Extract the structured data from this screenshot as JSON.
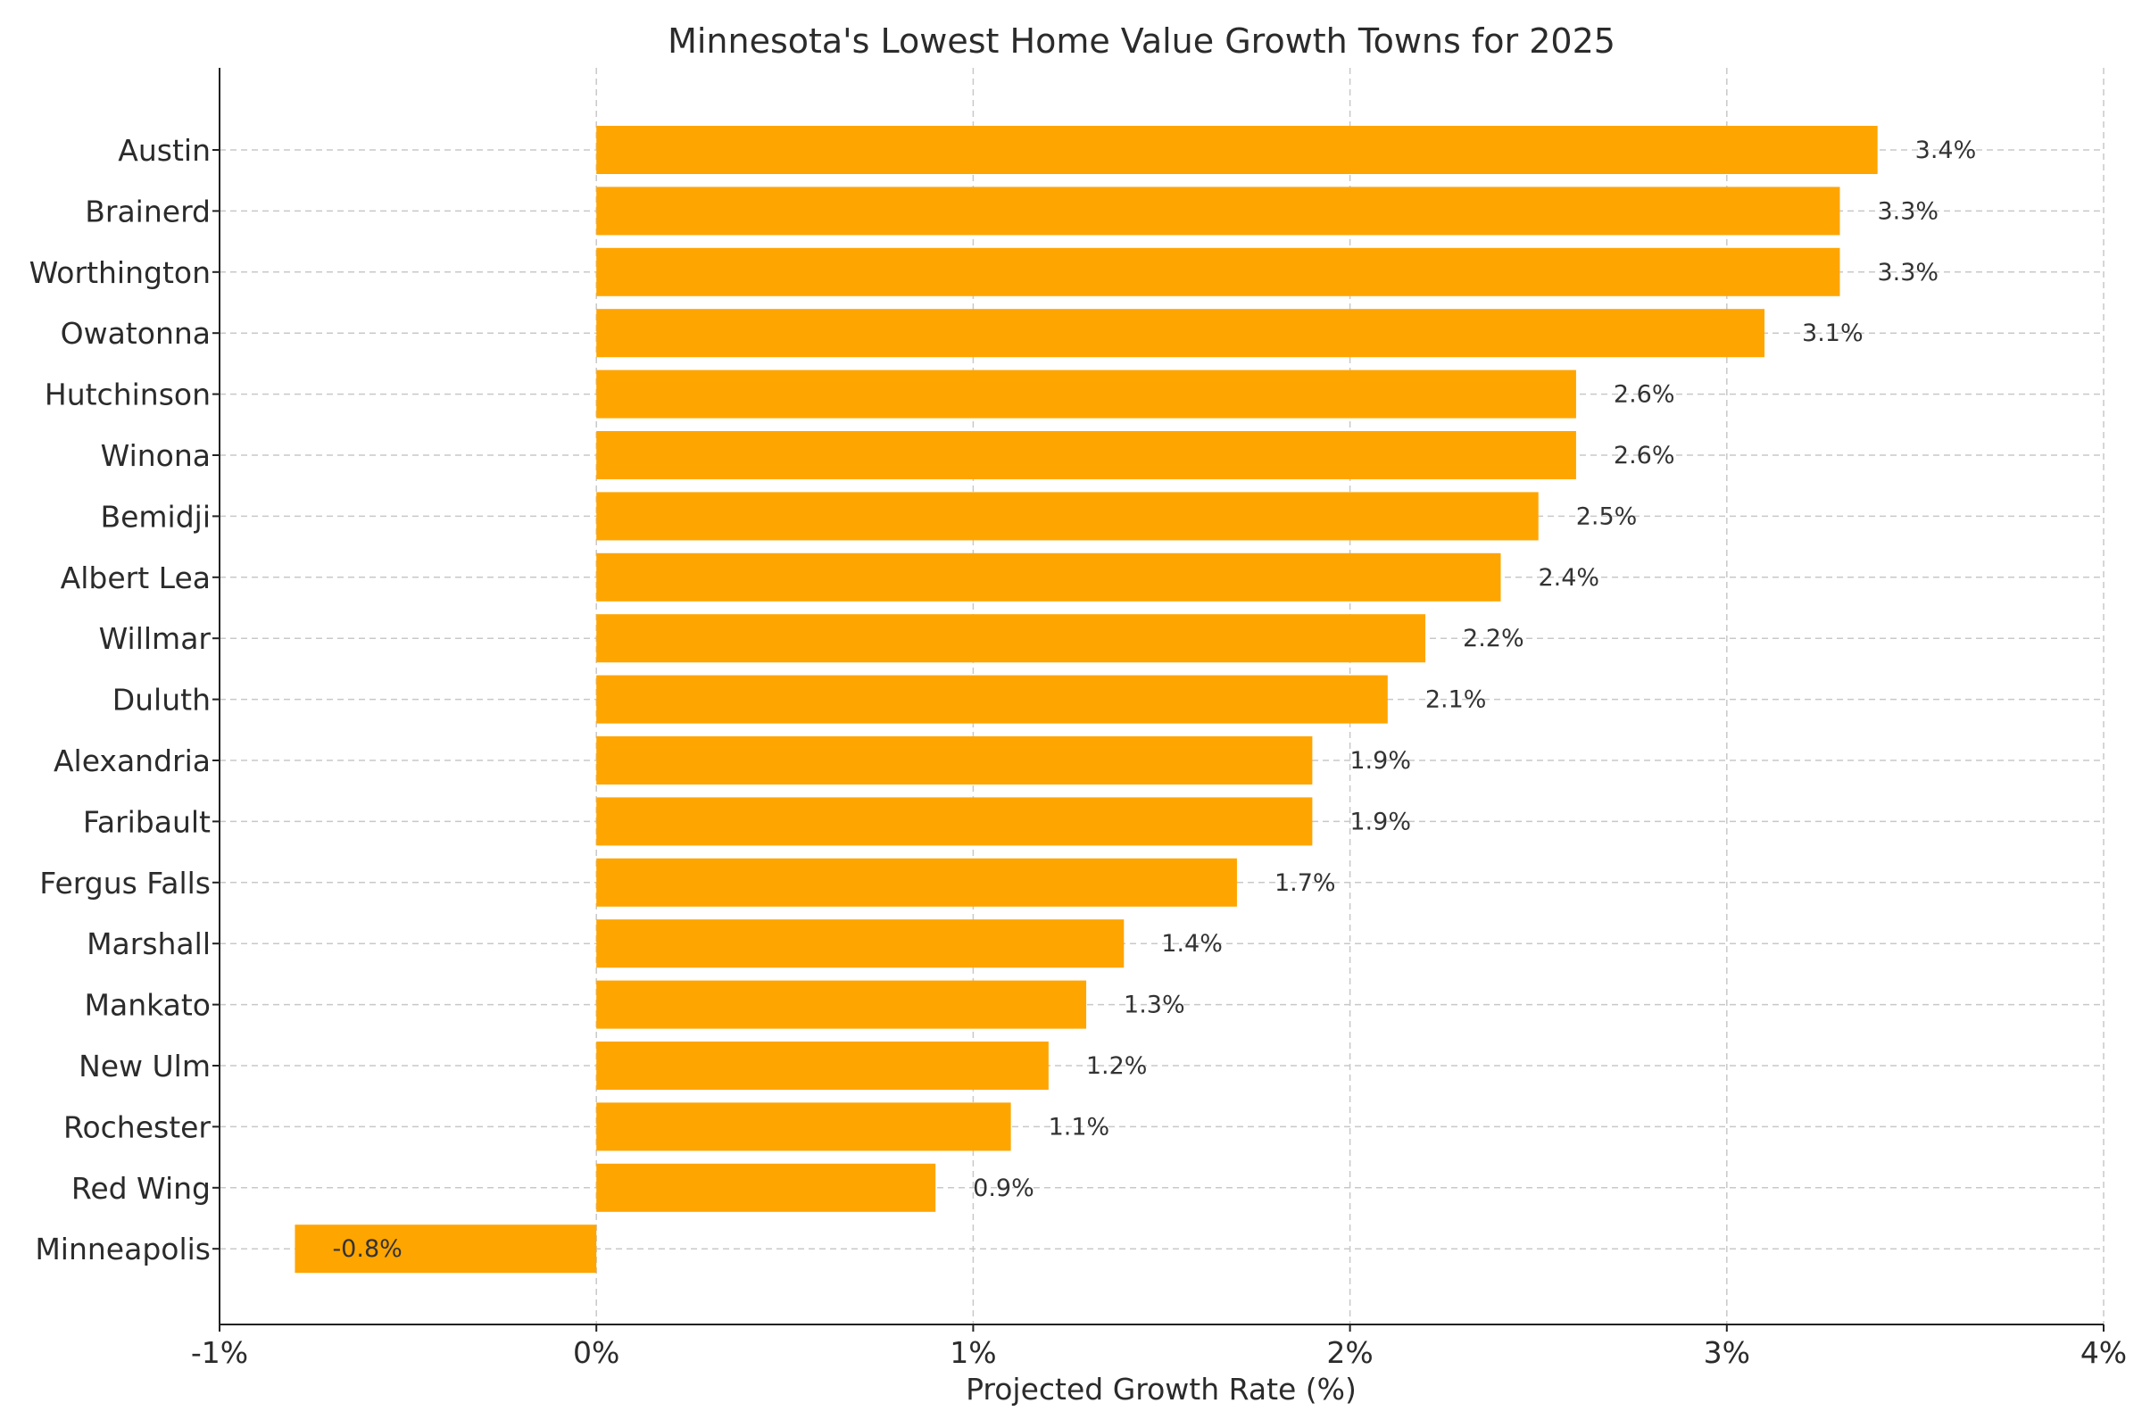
{
  "chart_data": {
    "type": "bar",
    "orientation": "horizontal",
    "title": "Minnesota's Lowest Home Value Growth Towns for 2025",
    "xlabel": "Projected Growth Rate (%)",
    "ylabel": "",
    "xlim": [
      -1,
      4
    ],
    "xticks": [
      -1,
      0,
      1,
      2,
      3,
      4
    ],
    "xtick_labels": [
      "-1%",
      "0%",
      "1%",
      "2%",
      "3%",
      "4%"
    ],
    "grid": true,
    "bar_color": "#FFA500",
    "categories": [
      "Austin",
      "Brainerd",
      "Worthington",
      "Owatonna",
      "Hutchinson",
      "Winona",
      "Bemidji",
      "Albert Lea",
      "Willmar",
      "Duluth",
      "Alexandria",
      "Faribault",
      "Fergus Falls",
      "Marshall",
      "Mankato",
      "New Ulm",
      "Rochester",
      "Red Wing",
      "Minneapolis"
    ],
    "values": [
      3.4,
      3.3,
      3.3,
      3.1,
      2.6,
      2.6,
      2.5,
      2.4,
      2.2,
      2.1,
      1.9,
      1.9,
      1.7,
      1.4,
      1.3,
      1.2,
      1.1,
      0.9,
      -0.8
    ],
    "data_labels": [
      "3.4%",
      "3.3%",
      "3.3%",
      "3.1%",
      "2.6%",
      "2.6%",
      "2.5%",
      "2.4%",
      "2.2%",
      "2.1%",
      "1.9%",
      "1.9%",
      "1.7%",
      "1.4%",
      "1.3%",
      "1.2%",
      "1.1%",
      "0.9%",
      "-0.8%"
    ]
  }
}
